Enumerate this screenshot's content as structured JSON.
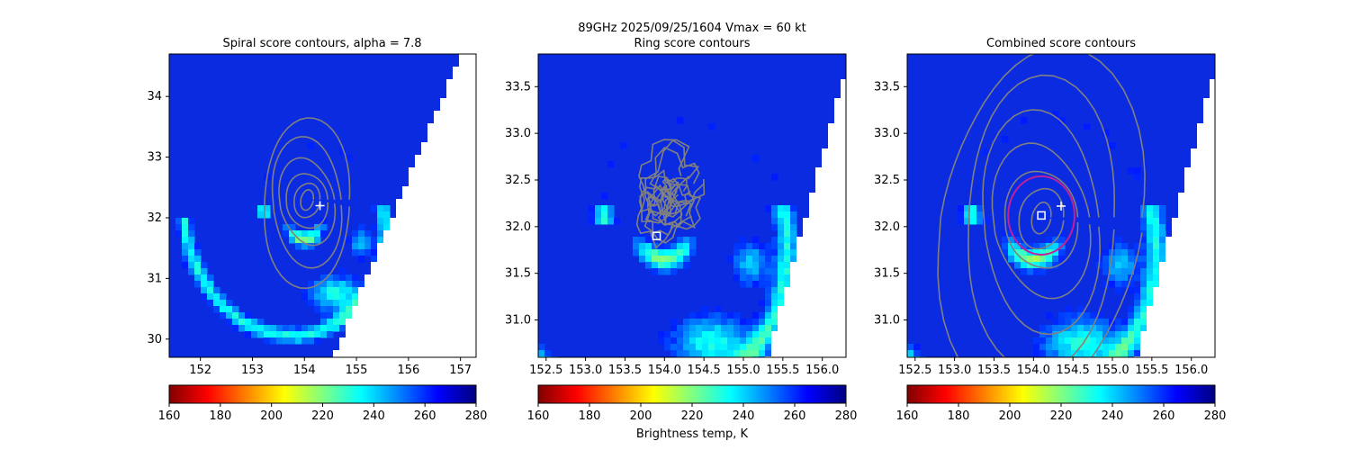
{
  "suptitle": {
    "line1": "89GHz  2025/09/25/1604    Vmax = 60 kt"
  },
  "colorbar_label": "Brightness temp, K",
  "colorbar": {
    "ticks": [
      160,
      180,
      200,
      220,
      240,
      260,
      280
    ],
    "range": [
      160,
      280
    ],
    "colormap": "jet_r",
    "colors": [
      "#800000",
      "#ff0000",
      "#ff8000",
      "#ffff00",
      "#80ff80",
      "#00ffff",
      "#0080ff",
      "#0000ff",
      "#000080"
    ]
  },
  "chart_data": [
    {
      "type": "heatmap",
      "title": "Spiral score contours, alpha =  7.8",
      "xlim": [
        151.4,
        157.3
      ],
      "ylim": [
        29.7,
        34.7
      ],
      "xticks": [
        152,
        153,
        154,
        155,
        156,
        157
      ],
      "yticks": [
        30,
        31,
        32,
        33,
        34
      ],
      "marker_plus": [
        154.3,
        32.2
      ],
      "marker_square": null,
      "circle": null,
      "swath_edge": [
        [
          154.55,
          29.7
        ],
        [
          157.0,
          34.7
        ]
      ],
      "contour_color": "#808080"
    },
    {
      "type": "heatmap",
      "title": "Ring score contours",
      "xlim": [
        152.4,
        156.3
      ],
      "ylim": [
        30.6,
        33.85
      ],
      "xticks": [
        152.5,
        153.0,
        153.5,
        154.0,
        154.5,
        155.0,
        155.5,
        156.0
      ],
      "yticks": [
        31.0,
        31.5,
        32.0,
        32.5,
        33.0,
        33.5
      ],
      "marker_plus": null,
      "marker_square": [
        153.9,
        31.9
      ],
      "circle": null,
      "swath_edge": [
        [
          155.3,
          30.6
        ],
        [
          156.3,
          33.7
        ]
      ],
      "contour_color": "#808080"
    },
    {
      "type": "heatmap",
      "title": "Combined score contours",
      "xlim": [
        152.4,
        156.3
      ],
      "ylim": [
        30.6,
        33.85
      ],
      "xticks": [
        152.5,
        153.0,
        153.5,
        154.0,
        154.5,
        155.0,
        155.5,
        156.0
      ],
      "yticks": [
        31.0,
        31.5,
        32.0,
        32.5,
        33.0,
        33.5
      ],
      "marker_plus": [
        154.35,
        32.22
      ],
      "marker_square": [
        154.1,
        32.12
      ],
      "circle": {
        "center": [
          154.1,
          32.12
        ],
        "radius_deg": 0.42,
        "color": "#c0209a"
      },
      "swath_edge": [
        [
          155.3,
          30.6
        ],
        [
          156.3,
          33.7
        ]
      ],
      "contour_color": "#808080"
    }
  ]
}
